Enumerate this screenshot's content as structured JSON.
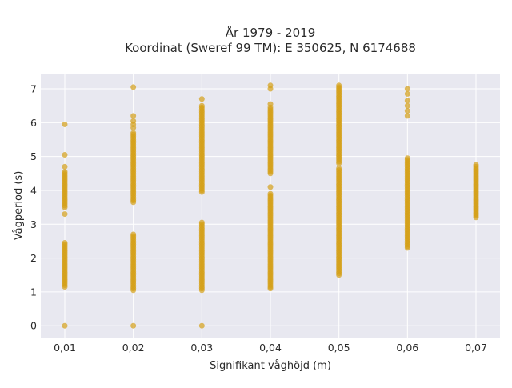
{
  "chart_data": {
    "type": "scatter",
    "title": "År 1979 - 2019",
    "subtitle": "Koordinat (Sweref 99 TM): E 350625, N 6174688",
    "xlabel": "Signifikant våghöjd (m)",
    "ylabel": "Vågperiod (s)",
    "x_categories": [
      "0,01",
      "0,02",
      "0,03",
      "0,04",
      "0,05",
      "0,06",
      "0,07"
    ],
    "x_values": [
      0.01,
      0.02,
      0.03,
      0.04,
      0.05,
      0.06,
      0.07
    ],
    "xlim": [
      0.0065,
      0.0735
    ],
    "ylim": [
      -0.35,
      7.45
    ],
    "y_ticks": [
      0,
      1,
      2,
      3,
      4,
      5,
      6,
      7
    ],
    "grid": true,
    "legend": "none",
    "colors": {
      "marker": "#d4a017",
      "plot_bg": "#e8e8f0",
      "grid": "#ffffff"
    },
    "columns": [
      {
        "x": 0.01,
        "segments": [
          [
            1.15,
            2.45
          ],
          [
            3.5,
            4.55
          ]
        ],
        "points": [
          0.0,
          3.3,
          4.7,
          5.05,
          5.95
        ]
      },
      {
        "x": 0.02,
        "segments": [
          [
            1.05,
            2.7
          ],
          [
            3.7,
            5.7
          ]
        ],
        "points": [
          0.0,
          3.65,
          5.85,
          5.95,
          6.05,
          6.2,
          7.05
        ]
      },
      {
        "x": 0.03,
        "segments": [
          [
            1.05,
            3.05
          ],
          [
            3.95,
            6.45
          ]
        ],
        "points": [
          0.0,
          6.5,
          6.7
        ]
      },
      {
        "x": 0.04,
        "segments": [
          [
            1.1,
            3.85
          ],
          [
            4.5,
            6.4
          ]
        ],
        "points": [
          3.9,
          4.1,
          6.45,
          6.55,
          7.0,
          7.1
        ]
      },
      {
        "x": 0.05,
        "segments": [
          [
            1.5,
            4.65
          ],
          [
            4.85,
            7.1
          ]
        ],
        "points": [
          4.8
        ]
      },
      {
        "x": 0.06,
        "segments": [
          [
            2.3,
            4.95
          ]
        ],
        "points": [
          6.2,
          6.35,
          6.5,
          6.65,
          6.85,
          7.0
        ]
      },
      {
        "x": 0.07,
        "segments": [
          [
            3.2,
            4.75
          ]
        ],
        "points": []
      }
    ]
  }
}
